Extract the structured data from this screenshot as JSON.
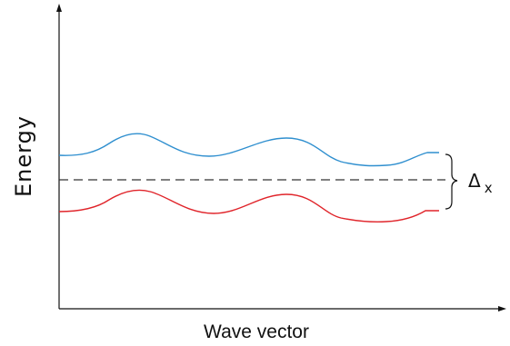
{
  "diagram": {
    "x_axis_label": "Wave vector",
    "y_axis_label": "Energy",
    "gap_symbol": "Δ",
    "gap_subscript": "x",
    "colors": {
      "axis": "#111111",
      "upper_band": "#2f8fcf",
      "lower_band": "#e0242a",
      "fermi_line": "#333333"
    }
  }
}
